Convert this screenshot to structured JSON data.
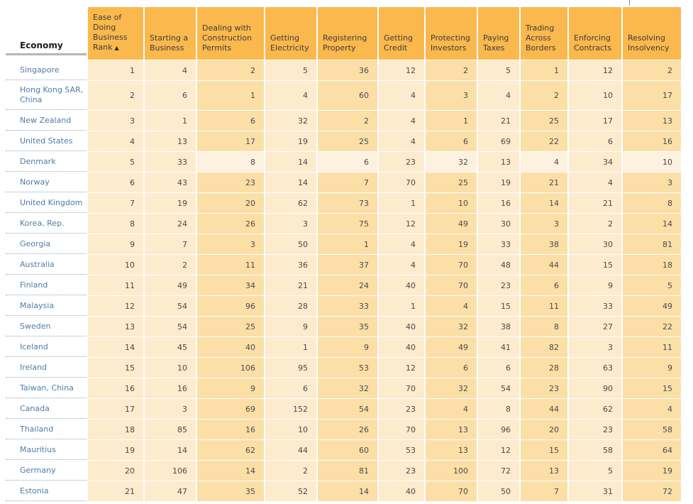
{
  "table": {
    "economy_header": "Economy",
    "sort_arrow": "▲",
    "columns": [
      {
        "label": "Ease of Doing Business Rank",
        "sorted": true
      },
      {
        "label": "Starting a Business"
      },
      {
        "label": "Dealing with Construction Permits"
      },
      {
        "label": "Getting Electricity"
      },
      {
        "label": "Registering Property"
      },
      {
        "label": "Getting Credit"
      },
      {
        "label": "Protecting Investors"
      },
      {
        "label": "Paying Taxes"
      },
      {
        "label": "Trading Across Borders"
      },
      {
        "label": "Enforcing Contracts"
      },
      {
        "label": "Resolving Insolvency"
      }
    ],
    "rows": [
      {
        "economy": "Singapore",
        "values": [
          1,
          4,
          2,
          5,
          36,
          12,
          2,
          5,
          1,
          12,
          2
        ]
      },
      {
        "economy": "Hong Kong SAR, China",
        "values": [
          2,
          6,
          1,
          4,
          60,
          4,
          3,
          4,
          2,
          10,
          17
        ]
      },
      {
        "economy": "New Zealand",
        "values": [
          3,
          1,
          6,
          32,
          2,
          4,
          1,
          21,
          25,
          17,
          13
        ]
      },
      {
        "economy": "United States",
        "values": [
          4,
          13,
          17,
          19,
          25,
          4,
          6,
          69,
          22,
          6,
          16
        ]
      },
      {
        "economy": "Denmark",
        "values": [
          5,
          33,
          8,
          14,
          6,
          23,
          32,
          13,
          4,
          34,
          10
        ],
        "highlighted": true
      },
      {
        "economy": "Norway",
        "values": [
          6,
          43,
          23,
          14,
          7,
          70,
          25,
          19,
          21,
          4,
          3
        ]
      },
      {
        "economy": "United Kingdom",
        "values": [
          7,
          19,
          20,
          62,
          73,
          1,
          10,
          16,
          14,
          21,
          8
        ]
      },
      {
        "economy": "Korea, Rep.",
        "values": [
          8,
          24,
          26,
          3,
          75,
          12,
          49,
          30,
          3,
          2,
          14
        ]
      },
      {
        "economy": "Georgia",
        "values": [
          9,
          7,
          3,
          50,
          1,
          4,
          19,
          33,
          38,
          30,
          81
        ]
      },
      {
        "economy": "Australia",
        "values": [
          10,
          2,
          11,
          36,
          37,
          4,
          70,
          48,
          44,
          15,
          18
        ]
      },
      {
        "economy": "Finland",
        "values": [
          11,
          49,
          34,
          21,
          24,
          40,
          70,
          23,
          6,
          9,
          5
        ]
      },
      {
        "economy": "Malaysia",
        "values": [
          12,
          54,
          96,
          28,
          33,
          1,
          4,
          15,
          11,
          33,
          49
        ]
      },
      {
        "economy": "Sweden",
        "values": [
          13,
          54,
          25,
          9,
          35,
          40,
          32,
          38,
          8,
          27,
          22
        ]
      },
      {
        "economy": "Iceland",
        "values": [
          14,
          45,
          40,
          1,
          9,
          40,
          49,
          41,
          82,
          3,
          11
        ]
      },
      {
        "economy": "Ireland",
        "values": [
          15,
          10,
          106,
          95,
          53,
          12,
          6,
          6,
          28,
          63,
          9
        ]
      },
      {
        "economy": "Taiwan, China",
        "values": [
          16,
          16,
          9,
          6,
          32,
          70,
          32,
          54,
          23,
          90,
          15
        ]
      },
      {
        "economy": "Canada",
        "values": [
          17,
          3,
          69,
          152,
          54,
          23,
          4,
          8,
          44,
          62,
          4
        ]
      },
      {
        "economy": "Thailand",
        "values": [
          18,
          85,
          16,
          10,
          26,
          70,
          13,
          96,
          20,
          23,
          58
        ]
      },
      {
        "economy": "Mauritius",
        "values": [
          19,
          14,
          62,
          44,
          60,
          53,
          13,
          12,
          15,
          58,
          64
        ]
      },
      {
        "economy": "Germany",
        "values": [
          20,
          106,
          14,
          2,
          81,
          23,
          100,
          72,
          13,
          5,
          19
        ]
      },
      {
        "economy": "Estonia",
        "values": [
          21,
          47,
          35,
          52,
          14,
          40,
          70,
          50,
          7,
          31,
          72
        ]
      }
    ]
  },
  "colors": {
    "header_bg": "#FBB84D",
    "cell_light": "#FCEBCD",
    "cell_shaded": "#FBDFA7",
    "cell_highlight": "#FDF1DF",
    "economy_link": "#4D7CA9"
  }
}
